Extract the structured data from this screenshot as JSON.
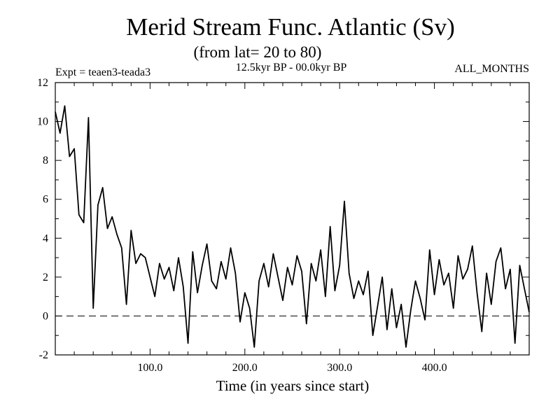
{
  "chart_data": {
    "type": "line",
    "title": "Merid Stream Func. Atlantic (Sv)",
    "subtitle": "(from lat= 20 to 80)",
    "experiment": "Expt = teaen3-teada3",
    "period": "12.5kyr BP - 00.0kyr BP",
    "months": "ALL_MONTHS",
    "xlabel": "Time (in years since start)",
    "ylabel": "",
    "xlim": [
      0,
      500
    ],
    "ylim": [
      -2,
      12
    ],
    "xticks": [
      100,
      200,
      300,
      400
    ],
    "xtick_labels": [
      "100.0",
      "200.0",
      "300.0",
      "400.0"
    ],
    "yticks": [
      -2,
      0,
      2,
      4,
      6,
      8,
      10,
      12
    ],
    "ytick_labels": [
      "-2",
      "0",
      "2",
      "4",
      "6",
      "8",
      "10",
      "12"
    ],
    "zero_line": 0,
    "series": [
      {
        "name": "MSF Atlantic",
        "x": [
          0,
          5,
          10,
          15,
          20,
          25,
          30,
          35,
          40,
          45,
          50,
          55,
          60,
          65,
          70,
          75,
          80,
          85,
          90,
          95,
          100,
          105,
          110,
          115,
          120,
          125,
          130,
          135,
          140,
          145,
          150,
          155,
          160,
          165,
          170,
          175,
          180,
          185,
          190,
          195,
          200,
          205,
          210,
          215,
          220,
          225,
          230,
          235,
          240,
          245,
          250,
          255,
          260,
          265,
          270,
          275,
          280,
          285,
          290,
          295,
          300,
          305,
          310,
          315,
          320,
          325,
          330,
          335,
          340,
          345,
          350,
          355,
          360,
          365,
          370,
          375,
          380,
          385,
          390,
          395,
          400,
          405,
          410,
          415,
          420,
          425,
          430,
          435,
          440,
          445,
          450,
          455,
          460,
          465,
          470,
          475,
          480,
          485,
          490,
          495,
          500
        ],
        "y": [
          10.5,
          9.4,
          10.8,
          8.2,
          8.6,
          5.2,
          4.8,
          10.2,
          0.4,
          5.7,
          6.6,
          4.5,
          5.1,
          4.2,
          3.5,
          0.6,
          4.4,
          2.7,
          3.2,
          3.0,
          2.0,
          1.0,
          2.7,
          1.9,
          2.5,
          1.3,
          3.0,
          1.5,
          -1.4,
          3.3,
          1.2,
          2.6,
          3.7,
          1.8,
          1.4,
          2.8,
          1.9,
          3.5,
          2.2,
          -0.3,
          1.2,
          0.4,
          -1.6,
          1.8,
          2.7,
          1.5,
          3.2,
          2.0,
          0.8,
          2.5,
          1.6,
          3.1,
          2.3,
          -0.4,
          2.7,
          1.8,
          3.4,
          1.0,
          4.6,
          1.3,
          2.6,
          5.9,
          2.2,
          0.9,
          1.8,
          1.1,
          2.3,
          -1.0,
          0.5,
          2.0,
          -0.7,
          1.4,
          -0.6,
          0.6,
          -1.6,
          0.3,
          1.8,
          0.9,
          -0.2,
          3.4,
          1.1,
          2.9,
          1.6,
          2.2,
          0.4,
          3.1,
          1.9,
          2.4,
          3.6,
          1.2,
          -0.8,
          2.2,
          0.6,
          2.8,
          3.5,
          1.4,
          2.4,
          -1.4,
          2.6,
          1.4,
          0.2
        ]
      }
    ]
  }
}
